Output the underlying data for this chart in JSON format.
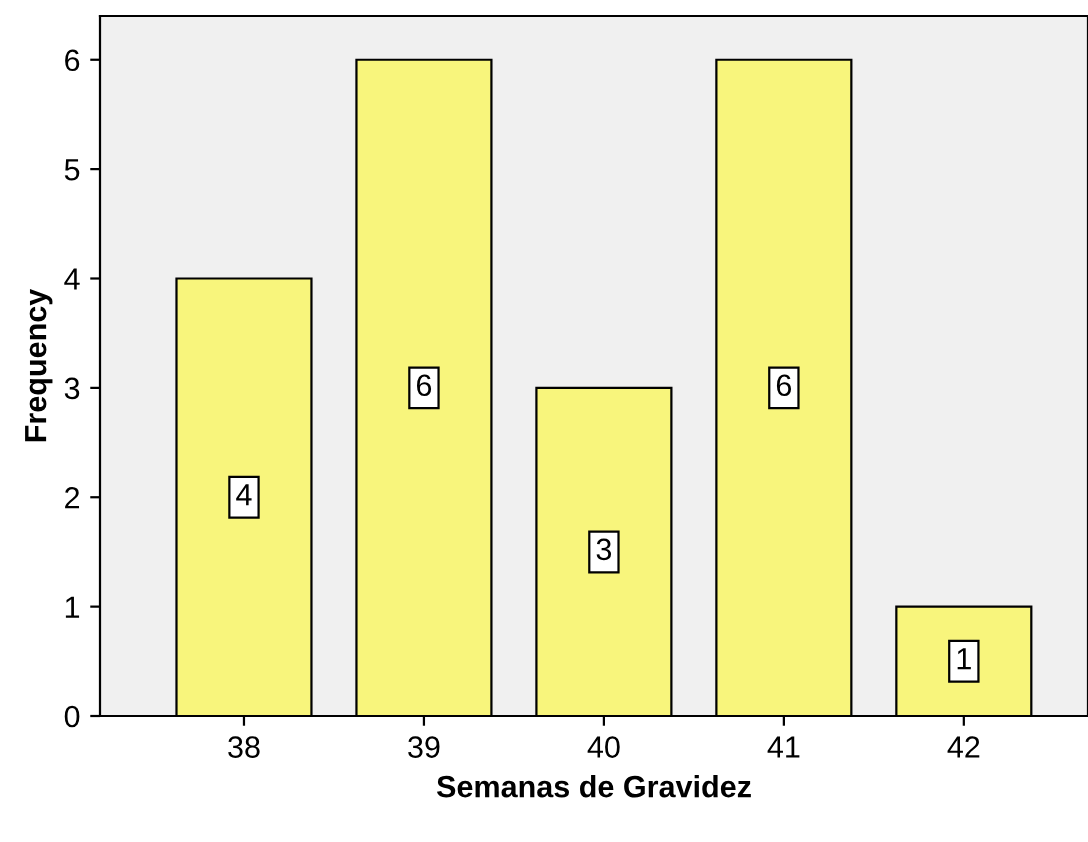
{
  "chart_data": {
    "type": "bar",
    "xlabel": "Semanas de Gravidez",
    "ylabel": "Frequency",
    "categories": [
      "38",
      "39",
      "40",
      "41",
      "42"
    ],
    "values": [
      4,
      6,
      3,
      6,
      1
    ],
    "color": "#f8f57c",
    "ylim": [
      0,
      6.4
    ],
    "yticks": [
      0,
      1,
      2,
      3,
      4,
      5,
      6
    ],
    "grid": false,
    "data_labels": true
  }
}
